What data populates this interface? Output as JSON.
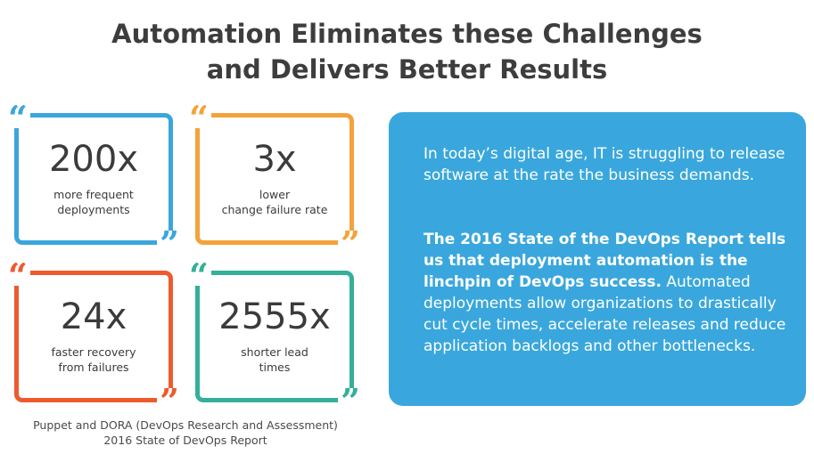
{
  "title": {
    "line1": "Automation Eliminates these Challenges",
    "line2": "and Delivers Better Results"
  },
  "colors": {
    "blue": "#3aa6dc",
    "orange": "#f4a23a",
    "red": "#ee5a2e",
    "teal": "#33b09a",
    "panel": "#39a7dd"
  },
  "stats": [
    {
      "value": "200x",
      "line1": "more frequent",
      "line2": "deployments",
      "color": "#3aa6dc"
    },
    {
      "value": "3x",
      "line1": "lower",
      "line2": "change failure rate",
      "color": "#f4a23a"
    },
    {
      "value": "24x",
      "line1": "faster recovery",
      "line2": "from failures",
      "color": "#ee5a2e"
    },
    {
      "value": "2555x",
      "line1": "shorter lead",
      "line2": "times",
      "color": "#33b09a"
    }
  ],
  "quote_marks": {
    "open": "“",
    "close": "”"
  },
  "source": {
    "line1": "Puppet and DORA (DevOps Research and Assessment)",
    "line2": "2016 State of DevOps Report"
  },
  "panel": {
    "paragraph1": "In today’s digital age, IT is struggling to release software at the rate the business demands.",
    "paragraph2_bold": "The 2016 State of the DevOps Report tells us that deployment automation is the linchpin of DevOps success.",
    "paragraph2_rest": "Automated deployments allow organizations to drastically cut cycle times, accelerate releases and reduce application backlogs and other bottlenecks."
  }
}
